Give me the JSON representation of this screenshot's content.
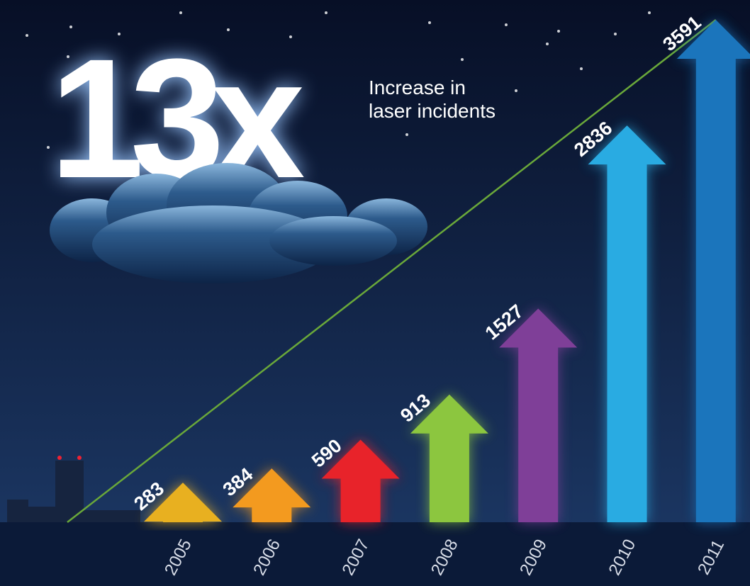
{
  "chart_data": {
    "type": "arrow-bar",
    "headline": "13x",
    "subtitle_lines": [
      "Increase in",
      "laser incidents"
    ],
    "categories": [
      "2005",
      "2006",
      "2007",
      "2008",
      "2009",
      "2010",
      "2011"
    ],
    "values": [
      283,
      384,
      590,
      913,
      1527,
      2836,
      3591
    ],
    "colors": [
      "#e8b020",
      "#f39a1f",
      "#e8232a",
      "#8cc63f",
      "#7f3f98",
      "#29abe2",
      "#1b75bc"
    ],
    "trend_line_color": "#6aa83a"
  }
}
